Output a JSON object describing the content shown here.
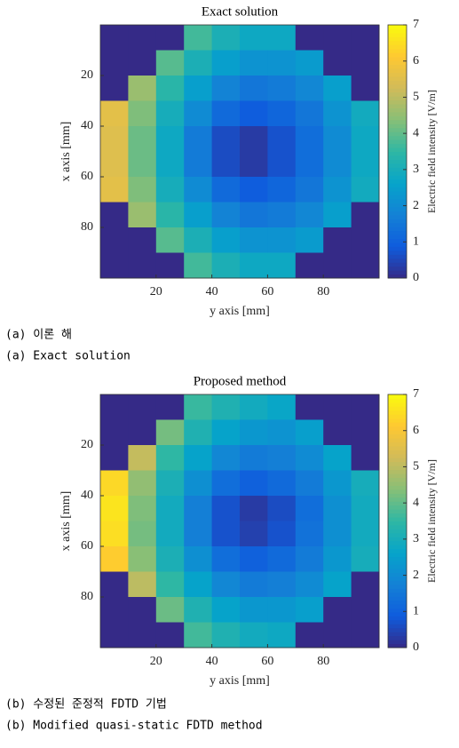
{
  "chart_data": [
    {
      "type": "heatmap",
      "title": "Exact solution",
      "xlabel": "y axis [mm]",
      "ylabel": "x axis [mm]",
      "colorbar_label": "Electric field intensity [V/m]",
      "colormap": "parula",
      "x": [
        5,
        15,
        25,
        35,
        45,
        55,
        65,
        75,
        85,
        95
      ],
      "y": [
        5,
        15,
        25,
        35,
        45,
        55,
        65,
        75,
        85,
        95
      ],
      "values": [
        [
          0,
          0,
          0,
          3.7,
          3.1,
          2.8,
          2.8,
          0,
          0,
          0
        ],
        [
          0,
          0,
          3.9,
          3.1,
          2.5,
          2.2,
          2.2,
          2.4,
          0,
          0
        ],
        [
          0,
          4.6,
          3.4,
          2.5,
          1.8,
          1.5,
          1.6,
          1.9,
          2.5,
          0
        ],
        [
          5.6,
          4.3,
          3.0,
          2.0,
          1.2,
          0.9,
          1.1,
          1.5,
          2.2,
          2.9
        ],
        [
          5.5,
          4.1,
          2.8,
          1.6,
          0.6,
          0.3,
          0.7,
          1.3,
          2.0,
          2.8
        ],
        [
          5.5,
          4.1,
          2.8,
          1.6,
          0.6,
          0.3,
          0.7,
          1.3,
          2.0,
          2.8
        ],
        [
          5.6,
          4.3,
          3.0,
          2.0,
          1.2,
          0.9,
          1.1,
          1.5,
          2.2,
          2.9
        ],
        [
          0,
          4.6,
          3.4,
          2.5,
          1.8,
          1.5,
          1.6,
          1.9,
          2.5,
          0
        ],
        [
          0,
          0,
          3.9,
          3.1,
          2.5,
          2.2,
          2.2,
          2.4,
          0,
          0
        ],
        [
          0,
          0,
          0,
          3.7,
          3.1,
          2.8,
          2.8,
          0,
          0,
          0
        ]
      ],
      "xlim": [
        0,
        100
      ],
      "xticks": [
        20,
        40,
        60,
        80
      ],
      "ylim": [
        0,
        100
      ],
      "yticks": [
        20,
        40,
        60,
        80
      ],
      "zlim": [
        0,
        7
      ],
      "zticks": [
        0,
        1,
        2,
        3,
        4,
        5,
        6,
        7
      ],
      "captions": [
        "(a) 이론 해",
        "(a) Exact solution"
      ]
    },
    {
      "type": "heatmap",
      "title": "Proposed method",
      "xlabel": "y axis [mm]",
      "ylabel": "x axis [mm]",
      "colorbar_label": "Electric field intensity [V/m]",
      "colormap": "parula",
      "x": [
        5,
        15,
        25,
        35,
        45,
        55,
        65,
        75,
        85,
        95
      ],
      "y": [
        5,
        15,
        25,
        35,
        45,
        55,
        65,
        75,
        85,
        95
      ],
      "values": [
        [
          0,
          0,
          0,
          3.6,
          3.2,
          2.9,
          2.7,
          0,
          0,
          0
        ],
        [
          0,
          0,
          4.2,
          3.2,
          2.6,
          2.3,
          2.2,
          2.5,
          0,
          0
        ],
        [
          0,
          5.1,
          3.5,
          2.6,
          1.9,
          1.6,
          1.7,
          2.0,
          2.6,
          0
        ],
        [
          6.4,
          4.5,
          3.1,
          2.1,
          1.3,
          1.0,
          1.2,
          1.6,
          2.3,
          3.0
        ],
        [
          6.6,
          4.3,
          2.9,
          1.7,
          0.7,
          0.3,
          0.6,
          1.3,
          2.1,
          2.9
        ],
        [
          6.5,
          4.2,
          2.9,
          1.7,
          0.7,
          0.4,
          0.7,
          1.4,
          2.1,
          2.9
        ],
        [
          6.2,
          4.4,
          3.1,
          2.1,
          1.3,
          1.0,
          1.2,
          1.6,
          2.3,
          3.0
        ],
        [
          0,
          5.0,
          3.5,
          2.6,
          1.9,
          1.6,
          1.7,
          2.0,
          2.6,
          0
        ],
        [
          0,
          0,
          4.1,
          3.2,
          2.6,
          2.3,
          2.3,
          2.5,
          0,
          0
        ],
        [
          0,
          0,
          0,
          3.7,
          3.2,
          2.9,
          2.8,
          0,
          0,
          0
        ]
      ],
      "xlim": [
        0,
        100
      ],
      "xticks": [
        20,
        40,
        60,
        80
      ],
      "ylim": [
        0,
        100
      ],
      "yticks": [
        20,
        40,
        60,
        80
      ],
      "zlim": [
        0,
        7
      ],
      "zticks": [
        0,
        1,
        2,
        3,
        4,
        5,
        6,
        7
      ],
      "captions": [
        "(b) 수정된 준정적 FDTD 기법",
        "(b) Modified quasi-static FDTD method"
      ]
    }
  ]
}
